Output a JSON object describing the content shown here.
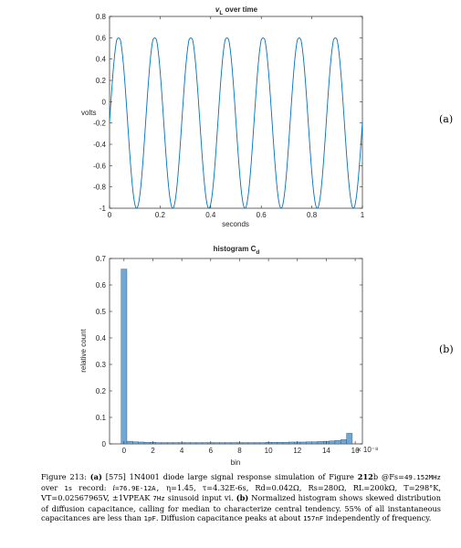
{
  "figure_panel_labels": {
    "a": "(a)",
    "b": "(b)"
  },
  "colors": {
    "series": "#0072BD",
    "bar_fill": "#6FA8D6",
    "bar_edge": "#2E4F6E",
    "axis": "#262626"
  },
  "caption": {
    "figure_label": "Figure 213:",
    "part_a_label": "(a)",
    "part_a_text": "[575] 1N4001 diode large signal response simulation of Figure",
    "figure_ref": "212",
    "figure_ref_suffix": "b @Fs=",
    "fs_value": "49.152MHz",
    "over_text": "over",
    "record_len": "1s",
    "record_word": "record:",
    "is_label": "i",
    "is_value": "=76.9E-12A,",
    "eta_text": "η=1.45,",
    "tau_text": "τ=4.32E-6s,",
    "rd_text": "Rd=0.042Ω,",
    "rs_text": "Rs=280Ω,",
    "rl_text": "RL=200kΩ,",
    "t_text": "T=298°K,",
    "vt_text": "VT=0.02567965V,",
    "vpeak_text": "±1VPEAK",
    "freq_text": "7Hz",
    "input_text": "sinusoid input vi.",
    "part_b_label": "(b)",
    "part_b_text": "Normalized histogram shows skewed distribution of diffusion capacitance, calling for median to characterize central tendency. 55% of all instantaneous capacitances are less than",
    "pf_value": "1pF",
    "peak_text": ". Diffusion capacitance peaks at about",
    "peak_value": "157nF",
    "end_text": "independently of frequency."
  },
  "chart_data": [
    {
      "type": "line",
      "title": "vL over time",
      "title_main": "v",
      "title_sub": "L",
      "title_rest": " over time",
      "xlabel": "seconds",
      "ylabel": "volts",
      "xlim": [
        0,
        1
      ],
      "ylim": [
        -1,
        0.8
      ],
      "xticks": [
        "0",
        "0.2",
        "0.4",
        "0.6",
        "0.8",
        "1"
      ],
      "yticks": [
        "-1",
        "-0.8",
        "-0.6",
        "-0.4",
        "-0.2",
        "0",
        "0.2",
        "0.4",
        "0.6",
        "0.8"
      ],
      "grid": false,
      "series": [
        {
          "frequency_hz": 7,
          "positive_peak": 0.62,
          "negative_peak": -1.0
        }
      ]
    },
    {
      "type": "bar",
      "title": "histogram Cd",
      "title_main": "histogram C",
      "title_sub": "d",
      "xlabel": "bin",
      "ylabel": "relative count",
      "x_exponent": "× 10⁻⁸",
      "xlim": [
        -1,
        16.5
      ],
      "ylim": [
        0,
        0.7
      ],
      "xticks": [
        "0",
        "2",
        "4",
        "6",
        "8",
        "10",
        "12",
        "14",
        "16"
      ],
      "yticks": [
        "0",
        "0.1",
        "0.2",
        "0.3",
        "0.4",
        "0.5",
        "0.6",
        "0.7"
      ],
      "grid": false,
      "bins_x": [
        0,
        0.4,
        0.8,
        1.2,
        1.6,
        2.0,
        2.4,
        2.8,
        3.2,
        3.6,
        4.0,
        4.4,
        4.8,
        5.2,
        5.6,
        6.0,
        6.4,
        6.8,
        7.2,
        7.6,
        8.0,
        8.4,
        8.8,
        9.2,
        9.6,
        10.0,
        10.4,
        10.8,
        11.2,
        11.6,
        12.0,
        12.4,
        12.8,
        13.2,
        13.6,
        14.0,
        14.4,
        14.8,
        15.2,
        15.6
      ],
      "values": [
        0.66,
        0.01,
        0.008,
        0.007,
        0.006,
        0.006,
        0.005,
        0.005,
        0.005,
        0.005,
        0.005,
        0.005,
        0.005,
        0.005,
        0.005,
        0.005,
        0.005,
        0.005,
        0.005,
        0.005,
        0.005,
        0.005,
        0.005,
        0.005,
        0.005,
        0.006,
        0.006,
        0.006,
        0.006,
        0.007,
        0.007,
        0.007,
        0.008,
        0.008,
        0.009,
        0.01,
        0.011,
        0.013,
        0.016,
        0.04
      ]
    }
  ]
}
